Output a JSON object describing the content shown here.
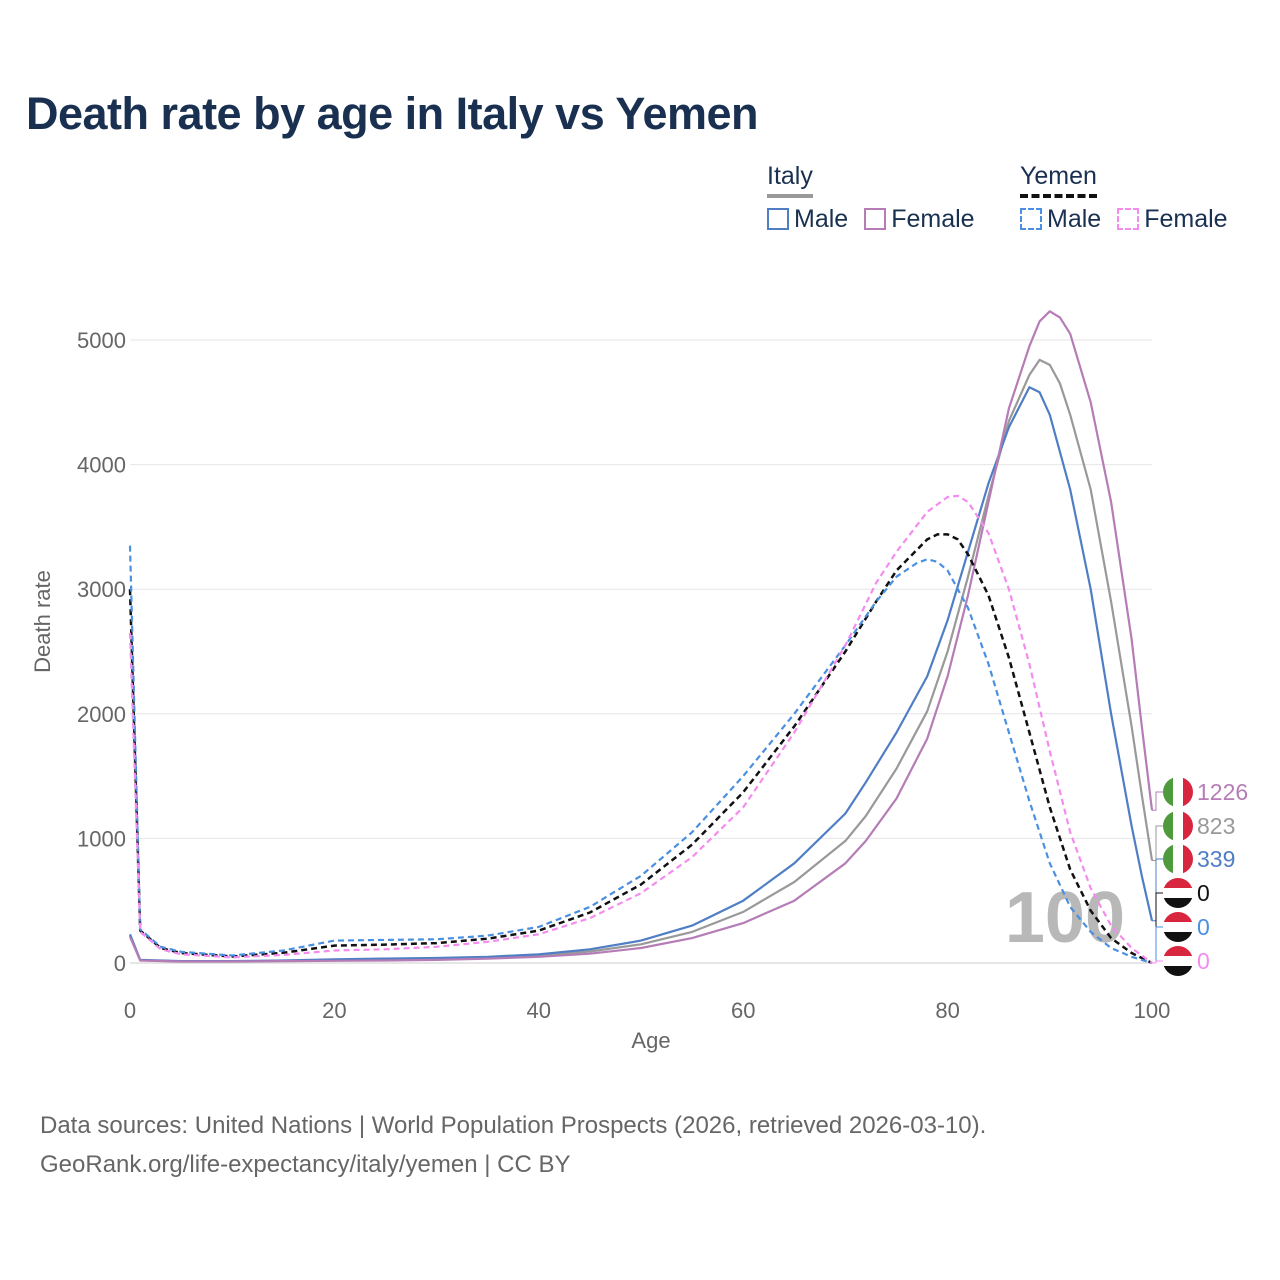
{
  "title": "Death rate by age in Italy vs Yemen",
  "legend": {
    "italy": {
      "label": "Italy",
      "male": "Male",
      "female": "Female"
    },
    "yemen": {
      "label": "Yemen",
      "male": "Male",
      "female": "Female"
    }
  },
  "colors": {
    "italy_male": "#4f7ec4",
    "italy_female": "#b57cb6",
    "italy_total": "#999999",
    "yemen_male": "#4a8fe0",
    "yemen_female": "#f48cf0",
    "yemen_total": "#111111"
  },
  "chart_data": {
    "type": "line",
    "title": "Death rate by age in Italy vs Yemen",
    "xlabel": "Age",
    "ylabel": "Death rate",
    "xlim": [
      0,
      100
    ],
    "ylim": [
      0,
      5000
    ],
    "xticks": [
      0,
      20,
      40,
      60,
      80,
      100
    ],
    "yticks": [
      0,
      1000,
      2000,
      3000,
      4000,
      5000
    ],
    "grid": true,
    "age_marker": "100",
    "series": [
      {
        "name": "Italy Male",
        "country": "Italy",
        "key": "italy_male",
        "dashed": false,
        "end_label": "339",
        "points": [
          [
            0,
            230
          ],
          [
            1,
            25
          ],
          [
            5,
            15
          ],
          [
            10,
            15
          ],
          [
            15,
            20
          ],
          [
            20,
            30
          ],
          [
            25,
            35
          ],
          [
            30,
            40
          ],
          [
            35,
            50
          ],
          [
            40,
            70
          ],
          [
            45,
            110
          ],
          [
            50,
            180
          ],
          [
            55,
            300
          ],
          [
            60,
            500
          ],
          [
            65,
            800
          ],
          [
            70,
            1200
          ],
          [
            72,
            1450
          ],
          [
            75,
            1850
          ],
          [
            78,
            2300
          ],
          [
            80,
            2750
          ],
          [
            82,
            3300
          ],
          [
            84,
            3850
          ],
          [
            86,
            4300
          ],
          [
            88,
            4620
          ],
          [
            89,
            4580
          ],
          [
            90,
            4400
          ],
          [
            92,
            3800
          ],
          [
            94,
            3000
          ],
          [
            96,
            2000
          ],
          [
            98,
            1100
          ],
          [
            99,
            700
          ],
          [
            100,
            339
          ]
        ]
      },
      {
        "name": "Italy Female",
        "country": "Italy",
        "key": "italy_female",
        "dashed": false,
        "end_label": "1226",
        "points": [
          [
            0,
            210
          ],
          [
            1,
            20
          ],
          [
            5,
            12
          ],
          [
            10,
            12
          ],
          [
            15,
            15
          ],
          [
            20,
            18
          ],
          [
            25,
            20
          ],
          [
            30,
            25
          ],
          [
            35,
            35
          ],
          [
            40,
            50
          ],
          [
            45,
            75
          ],
          [
            50,
            120
          ],
          [
            55,
            200
          ],
          [
            60,
            320
          ],
          [
            65,
            500
          ],
          [
            70,
            800
          ],
          [
            72,
            980
          ],
          [
            75,
            1320
          ],
          [
            78,
            1800
          ],
          [
            80,
            2300
          ],
          [
            82,
            2950
          ],
          [
            84,
            3700
          ],
          [
            86,
            4450
          ],
          [
            88,
            4950
          ],
          [
            89,
            5150
          ],
          [
            90,
            5230
          ],
          [
            91,
            5180
          ],
          [
            92,
            5050
          ],
          [
            94,
            4500
          ],
          [
            96,
            3700
          ],
          [
            98,
            2600
          ],
          [
            99,
            1900
          ],
          [
            100,
            1226
          ]
        ]
      },
      {
        "name": "Italy Total",
        "country": "Italy",
        "key": "italy_total",
        "dashed": false,
        "end_label": "823",
        "points": [
          [
            0,
            220
          ],
          [
            1,
            22
          ],
          [
            5,
            13
          ],
          [
            10,
            13
          ],
          [
            15,
            17
          ],
          [
            20,
            24
          ],
          [
            25,
            27
          ],
          [
            30,
            32
          ],
          [
            35,
            42
          ],
          [
            40,
            60
          ],
          [
            45,
            92
          ],
          [
            50,
            150
          ],
          [
            55,
            250
          ],
          [
            60,
            410
          ],
          [
            65,
            650
          ],
          [
            70,
            980
          ],
          [
            72,
            1180
          ],
          [
            75,
            1560
          ],
          [
            78,
            2020
          ],
          [
            80,
            2500
          ],
          [
            82,
            3100
          ],
          [
            84,
            3750
          ],
          [
            86,
            4350
          ],
          [
            88,
            4720
          ],
          [
            89,
            4840
          ],
          [
            90,
            4800
          ],
          [
            91,
            4650
          ],
          [
            92,
            4400
          ],
          [
            94,
            3800
          ],
          [
            96,
            2900
          ],
          [
            98,
            1900
          ],
          [
            99,
            1350
          ],
          [
            100,
            823
          ]
        ]
      },
      {
        "name": "Yemen Male",
        "country": "Yemen",
        "key": "yemen_male",
        "dashed": true,
        "end_label": "0",
        "points": [
          [
            0,
            3350
          ],
          [
            1,
            270
          ],
          [
            3,
            130
          ],
          [
            5,
            90
          ],
          [
            10,
            60
          ],
          [
            15,
            100
          ],
          [
            20,
            180
          ],
          [
            25,
            185
          ],
          [
            30,
            190
          ],
          [
            35,
            220
          ],
          [
            40,
            290
          ],
          [
            45,
            450
          ],
          [
            50,
            700
          ],
          [
            55,
            1050
          ],
          [
            60,
            1500
          ],
          [
            65,
            2000
          ],
          [
            70,
            2550
          ],
          [
            73,
            2900
          ],
          [
            75,
            3100
          ],
          [
            77,
            3210
          ],
          [
            78,
            3240
          ],
          [
            79,
            3220
          ],
          [
            80,
            3150
          ],
          [
            82,
            2850
          ],
          [
            84,
            2400
          ],
          [
            86,
            1850
          ],
          [
            88,
            1300
          ],
          [
            90,
            800
          ],
          [
            92,
            450
          ],
          [
            94,
            250
          ],
          [
            96,
            120
          ],
          [
            98,
            50
          ],
          [
            100,
            0
          ]
        ]
      },
      {
        "name": "Yemen Female",
        "country": "Yemen",
        "key": "yemen_female",
        "dashed": true,
        "end_label": "0",
        "points": [
          [
            0,
            2650
          ],
          [
            1,
            250
          ],
          [
            3,
            110
          ],
          [
            5,
            70
          ],
          [
            10,
            45
          ],
          [
            15,
            65
          ],
          [
            20,
            100
          ],
          [
            25,
            110
          ],
          [
            30,
            130
          ],
          [
            35,
            170
          ],
          [
            40,
            230
          ],
          [
            45,
            360
          ],
          [
            50,
            560
          ],
          [
            55,
            850
          ],
          [
            60,
            1250
          ],
          [
            65,
            1850
          ],
          [
            70,
            2550
          ],
          [
            73,
            3050
          ],
          [
            75,
            3300
          ],
          [
            78,
            3620
          ],
          [
            80,
            3740
          ],
          [
            81,
            3750
          ],
          [
            82,
            3700
          ],
          [
            84,
            3450
          ],
          [
            86,
            3000
          ],
          [
            88,
            2400
          ],
          [
            90,
            1700
          ],
          [
            92,
            1050
          ],
          [
            94,
            600
          ],
          [
            96,
            300
          ],
          [
            98,
            120
          ],
          [
            100,
            0
          ]
        ]
      },
      {
        "name": "Yemen Total",
        "country": "Yemen",
        "key": "yemen_total",
        "dashed": true,
        "end_label": "0",
        "points": [
          [
            0,
            3000
          ],
          [
            1,
            260
          ],
          [
            3,
            120
          ],
          [
            5,
            80
          ],
          [
            10,
            52
          ],
          [
            15,
            82
          ],
          [
            20,
            140
          ],
          [
            25,
            148
          ],
          [
            30,
            160
          ],
          [
            35,
            195
          ],
          [
            40,
            260
          ],
          [
            45,
            405
          ],
          [
            50,
            630
          ],
          [
            55,
            950
          ],
          [
            60,
            1370
          ],
          [
            65,
            1900
          ],
          [
            70,
            2500
          ],
          [
            73,
            2900
          ],
          [
            75,
            3150
          ],
          [
            78,
            3400
          ],
          [
            79,
            3440
          ],
          [
            80,
            3440
          ],
          [
            81,
            3400
          ],
          [
            82,
            3280
          ],
          [
            84,
            2950
          ],
          [
            86,
            2450
          ],
          [
            88,
            1850
          ],
          [
            90,
            1250
          ],
          [
            92,
            750
          ],
          [
            94,
            420
          ],
          [
            96,
            200
          ],
          [
            98,
            80
          ],
          [
            100,
            0
          ]
        ]
      }
    ]
  },
  "end_labels": [
    {
      "value": "1226",
      "country": "Italy",
      "key": "italy_female"
    },
    {
      "value": "823",
      "country": "Italy",
      "key": "italy_total"
    },
    {
      "value": "339",
      "country": "Italy",
      "key": "italy_male"
    },
    {
      "value": "0",
      "country": "Yemen",
      "key": "yemen_total"
    },
    {
      "value": "0",
      "country": "Yemen",
      "key": "yemen_male"
    },
    {
      "value": "0",
      "country": "Yemen",
      "key": "yemen_female"
    }
  ],
  "source": {
    "line1": "Data sources: United Nations | World Population Prospects (2026, retrieved 2026-03-10).",
    "line2": "GeoRank.org/life-expectancy/italy/yemen | CC BY"
  }
}
